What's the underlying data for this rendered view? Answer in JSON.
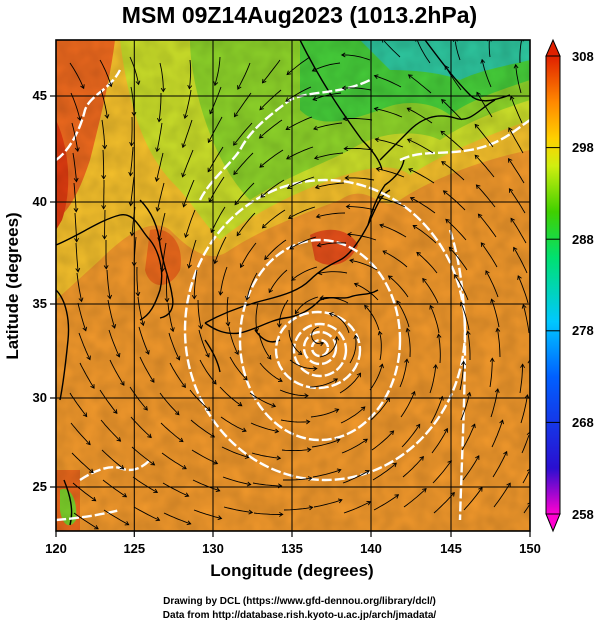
{
  "title": "MSM 09Z14Aug2023 (1013.2hPa)",
  "credits": {
    "line1": "Drawing by DCL (https://www.gfd-dennou.org/library/dcl/)",
    "line2": "Data from http://database.rish.kyoto-u.ac.jp/arch/jmadata/"
  },
  "chart_data": {
    "type": "heatmap",
    "xlabel": "Longitude (degrees)",
    "ylabel": "Latitude  (degrees)",
    "xlim": [
      120,
      150
    ],
    "ylim": [
      22.4,
      47.6
    ],
    "xticks": [
      "120",
      "125",
      "130",
      "135",
      "140",
      "145",
      "150"
    ],
    "yticks": [
      "25",
      "30",
      "35",
      "40",
      "45"
    ],
    "colorbar": {
      "min": 258,
      "max": 308,
      "ticks": [
        "308",
        "298",
        "288",
        "278",
        "268",
        "258"
      ],
      "colors": [
        "#ff00d0",
        "#2a0fd0",
        "#0060ff",
        "#00c8ff",
        "#00e070",
        "#40d000",
        "#d0ee10",
        "#ffd000",
        "#ff8800",
        "#e02000"
      ]
    },
    "cyclone_center": {
      "lon": 136.7,
      "lat": 32.4
    },
    "grid": true
  }
}
